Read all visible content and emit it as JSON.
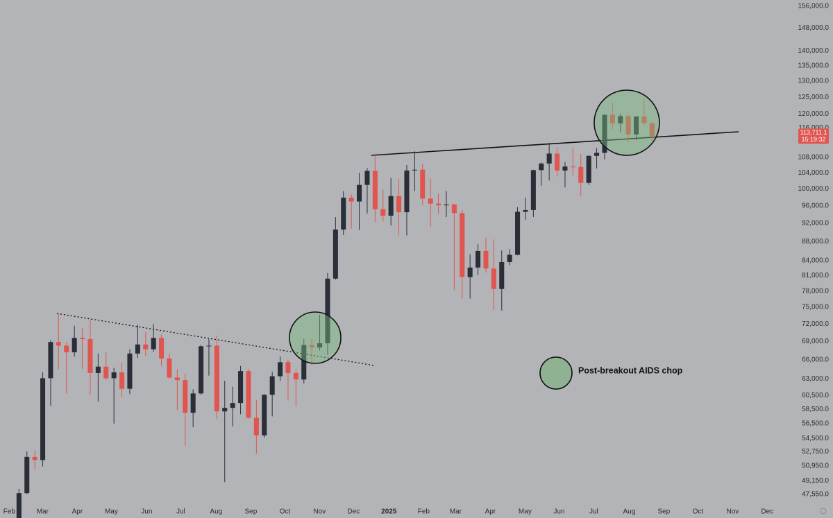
{
  "chart_data": {
    "type": "candlestick",
    "log_scale": true,
    "up_color": "#2a2e39",
    "down_color": "#e0554f",
    "categories": [
      null,
      null,
      null,
      null,
      null,
      null,
      null,
      null,
      null,
      null,
      null,
      null,
      null,
      null,
      null,
      null,
      null,
      null,
      null,
      null,
      null,
      null,
      null,
      null,
      null,
      null,
      null,
      null,
      null,
      null,
      null,
      null,
      null,
      null,
      null,
      null,
      null,
      null,
      null,
      null,
      null,
      null,
      null,
      null,
      null,
      null,
      null,
      null,
      null,
      null,
      null,
      null,
      null,
      null,
      null,
      null,
      null,
      null,
      null,
      null,
      null,
      null,
      null,
      null,
      null,
      null,
      null,
      null,
      null,
      null,
      null,
      null,
      null,
      null,
      null,
      null,
      null,
      null,
      null,
      null,
      null
    ],
    "open": [
      42600,
      47700,
      52100,
      51700,
      63100,
      68900,
      68300,
      67200,
      69600,
      69400,
      63900,
      64900,
      63100,
      64000,
      61500,
      67000,
      68500,
      67700,
      69600,
      66200,
      63200,
      62800,
      58000,
      60800,
      68200,
      68300,
      58200,
      58700,
      59400,
      64200,
      57300,
      54900,
      60600,
      63400,
      65600,
      63900,
      62900,
      68400,
      68000,
      68700,
      80400,
      90600,
      97900,
      97000,
      101000,
      104500,
      95200,
      93700,
      98300,
      94500,
      104600,
      104800,
      97700,
      96500,
      96100,
      96300,
      94300,
      80700,
      82600,
      86000,
      82400,
      78400,
      83700,
      85200,
      94600,
      95000,
      104700,
      106400,
      109000,
      104600,
      105600,
      105500,
      101500,
      108400,
      109200,
      119800,
      117300,
      119400,
      114200,
      119300,
      117400
    ],
    "high": [
      48200,
      52800,
      52900,
      64000,
      69200,
      73800,
      68900,
      71700,
      71300,
      72800,
      67000,
      67200,
      64700,
      65500,
      67700,
      71900,
      70600,
      72000,
      70200,
      67000,
      64500,
      63800,
      61400,
      68400,
      69400,
      70000,
      62700,
      61800,
      65000,
      64500,
      59800,
      60700,
      64100,
      66500,
      66000,
      64500,
      69400,
      69500,
      73600,
      81500,
      93400,
      99500,
      98700,
      104000,
      105200,
      108300,
      99900,
      102700,
      102500,
      106000,
      109600,
      106400,
      102500,
      98800,
      99500,
      96500,
      95000,
      85300,
      87500,
      88800,
      88500,
      86100,
      86400,
      95700,
      97900,
      104800,
      106700,
      111900,
      110700,
      106800,
      110500,
      108900,
      108500,
      110500,
      119900,
      123200,
      120200,
      119900,
      119400,
      124500,
      117600
    ],
    "low": [
      42500,
      47600,
      50600,
      50900,
      59000,
      64500,
      60800,
      66500,
      64500,
      60600,
      59600,
      62800,
      56500,
      60200,
      60700,
      66300,
      66600,
      67300,
      65000,
      63000,
      58400,
      53500,
      56000,
      60600,
      63500,
      57100,
      49000,
      56100,
      57800,
      57200,
      52500,
      54600,
      57500,
      62700,
      59800,
      58900,
      62300,
      65100,
      67500,
      66800,
      80200,
      89400,
      90800,
      90500,
      94200,
      92200,
      92400,
      91500,
      89300,
      89300,
      99500,
      96200,
      91200,
      94100,
      93400,
      78200,
      76600,
      76600,
      81100,
      81600,
      74500,
      74400,
      83100,
      85100,
      92800,
      93400,
      100800,
      102100,
      103100,
      100400,
      103400,
      98200,
      101000,
      105100,
      107500,
      115700,
      114700,
      112000,
      112600,
      116800,
      112400
    ],
    "close": [
      47700,
      52100,
      51700,
      63100,
      68900,
      68300,
      67200,
      69600,
      69400,
      63900,
      64900,
      63100,
      64000,
      61500,
      67000,
      68500,
      67700,
      69600,
      66200,
      63200,
      62800,
      58000,
      60800,
      68200,
      68300,
      58200,
      58700,
      59400,
      64200,
      57300,
      54900,
      60600,
      63400,
      65600,
      63900,
      62900,
      68400,
      68000,
      68700,
      80400,
      90600,
      97900,
      97000,
      101000,
      104500,
      95200,
      93700,
      98300,
      94500,
      104600,
      104800,
      97700,
      96500,
      96100,
      96300,
      94300,
      80700,
      82600,
      86000,
      82400,
      78400,
      83700,
      85200,
      94600,
      95000,
      104700,
      106400,
      109000,
      104600,
      105600,
      105500,
      101500,
      108400,
      109200,
      119800,
      117300,
      119400,
      114200,
      119300,
      117400,
      113711.1
    ],
    "xlim": [
      -2.4,
      97.6
    ],
    "xticks": [
      {
        "value": -1.23,
        "label": "Feb"
      },
      {
        "value": 2.98,
        "label": "Mar"
      },
      {
        "value": 7.37,
        "label": "Apr"
      },
      {
        "value": 11.67,
        "label": "May"
      },
      {
        "value": 16.14,
        "label": "Jun"
      },
      {
        "value": 20.44,
        "label": "Jul"
      },
      {
        "value": 24.91,
        "label": "Aug"
      },
      {
        "value": 29.3,
        "label": "Sep"
      },
      {
        "value": 33.6,
        "label": "Oct"
      },
      {
        "value": 37.98,
        "label": "Nov"
      },
      {
        "value": 42.28,
        "label": "Dec"
      },
      {
        "value": 46.75,
        "label": "2025"
      },
      {
        "value": 51.14,
        "label": "Feb"
      },
      {
        "value": 55.18,
        "label": "Mar"
      },
      {
        "value": 59.56,
        "label": "Apr"
      },
      {
        "value": 63.95,
        "label": "May"
      },
      {
        "value": 68.25,
        "label": "Jun"
      },
      {
        "value": 72.63,
        "label": "Jul"
      },
      {
        "value": 77.11,
        "label": "Aug"
      },
      {
        "value": 81.49,
        "label": "Sep"
      },
      {
        "value": 85.79,
        "label": "Oct"
      },
      {
        "value": 90.18,
        "label": "Nov"
      },
      {
        "value": 94.56,
        "label": "Dec"
      }
    ],
    "ylim": [
      44900,
      158400
    ],
    "yticks": [
      {
        "value": 47550,
        "label": "47,550.0"
      },
      {
        "value": 49150,
        "label": "49,150.0"
      },
      {
        "value": 50950,
        "label": "50,950.0"
      },
      {
        "value": 52750,
        "label": "52,750.0"
      },
      {
        "value": 54500,
        "label": "54,500.0"
      },
      {
        "value": 56500,
        "label": "56,500.0"
      },
      {
        "value": 58500,
        "label": "58,500.0"
      },
      {
        "value": 60500,
        "label": "60,500.0"
      },
      {
        "value": 63000,
        "label": "63,000.0"
      },
      {
        "value": 66000,
        "label": "66,000.0"
      },
      {
        "value": 69000,
        "label": "69,000.0"
      },
      {
        "value": 72000,
        "label": "72,000.0"
      },
      {
        "value": 75000,
        "label": "75,000.0"
      },
      {
        "value": 78000,
        "label": "78,000.0"
      },
      {
        "value": 81000,
        "label": "81,000.0"
      },
      {
        "value": 84000,
        "label": "84,000.0"
      },
      {
        "value": 88000,
        "label": "88,000.0"
      },
      {
        "value": 92000,
        "label": "92,000.0"
      },
      {
        "value": 96000,
        "label": "96,000.0"
      },
      {
        "value": 100000,
        "label": "100,000.0"
      },
      {
        "value": 104000,
        "label": "104,000.0"
      },
      {
        "value": 108000,
        "label": "108,000.0"
      },
      {
        "value": 116000,
        "label": "116,000.0"
      },
      {
        "value": 120000,
        "label": "120,000.0"
      },
      {
        "value": 125000,
        "label": "125,000.0"
      },
      {
        "value": 130000,
        "label": "130,000.0"
      },
      {
        "value": 135000,
        "label": "135,000.0"
      },
      {
        "value": 140000,
        "label": "140,000.0"
      },
      {
        "value": 148000,
        "label": "148,000.0"
      },
      {
        "value": 156000,
        "label": "156,000.0"
      }
    ],
    "price_label": "113,711.1",
    "countdown": "15:19:32",
    "annotation": "Post-breakout AIDS chop"
  }
}
